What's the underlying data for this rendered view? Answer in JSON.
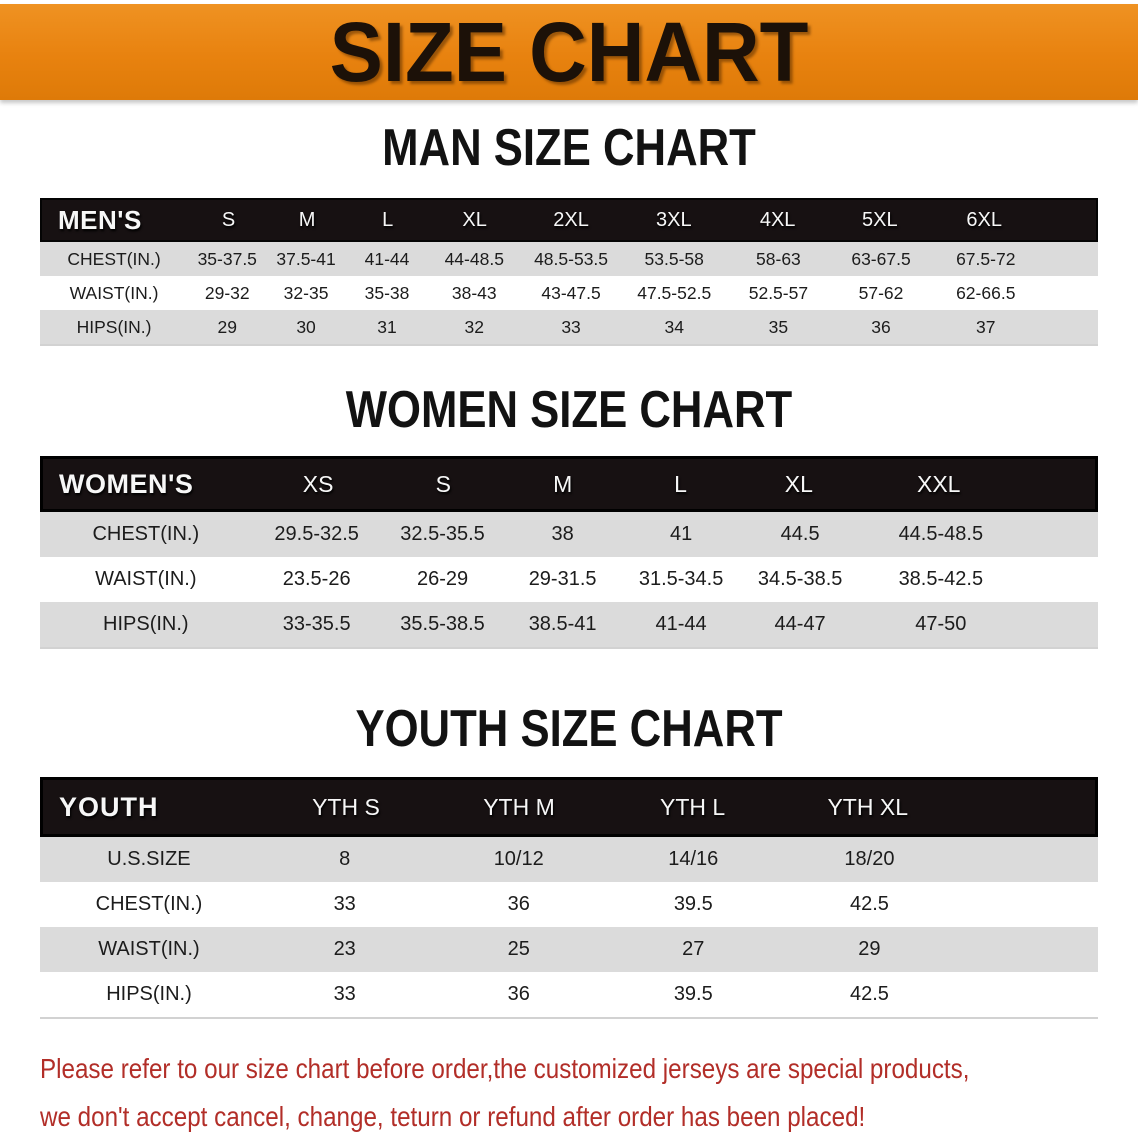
{
  "banner": {
    "title": "SIZE CHART",
    "bg_color": "#e8820f",
    "text_color": "#1c1108"
  },
  "sections": [
    {
      "id": "men",
      "title": "MAN SIZE CHART",
      "table": {
        "header_label": "MEN'S",
        "columns": [
          "S",
          "M",
          "L",
          "XL",
          "2XL",
          "3XL",
          "4XL",
          "5XL",
          "6XL"
        ],
        "rows": [
          {
            "label": "CHEST(IN.)",
            "values": [
              "35-37.5",
              "37.5-41",
              "41-44",
              "44-48.5",
              "48.5-53.5",
              "53.5-58",
              "58-63",
              "63-67.5",
              "67.5-72"
            ]
          },
          {
            "label": "WAIST(IN.)",
            "values": [
              "29-32",
              "32-35",
              "35-38",
              "38-43",
              "43-47.5",
              "47.5-52.5",
              "52.5-57",
              "57-62",
              "62-66.5"
            ]
          },
          {
            "label": "HIPS(IN.)",
            "values": [
              "29",
              "30",
              "31",
              "32",
              "33",
              "34",
              "35",
              "36",
              "37"
            ]
          }
        ]
      }
    },
    {
      "id": "women",
      "title": "WOMEN SIZE CHART",
      "table": {
        "header_label": "WOMEN'S",
        "columns": [
          "XS",
          "S",
          "M",
          "L",
          "XL",
          "XXL"
        ],
        "rows": [
          {
            "label": "CHEST(IN.)",
            "values": [
              "29.5-32.5",
              "32.5-35.5",
              "38",
              "41",
              "44.5",
              "44.5-48.5"
            ]
          },
          {
            "label": "WAIST(IN.)",
            "values": [
              "23.5-26",
              "26-29",
              "29-31.5",
              "31.5-34.5",
              "34.5-38.5",
              "38.5-42.5"
            ]
          },
          {
            "label": "HIPS(IN.)",
            "values": [
              "33-35.5",
              "35.5-38.5",
              "38.5-41",
              "41-44",
              "44-47",
              "47-50"
            ]
          }
        ]
      }
    },
    {
      "id": "youth",
      "title": "YOUTH SIZE CHART",
      "table": {
        "header_label": "YOUTH",
        "columns": [
          "YTH S",
          "YTH M",
          "YTH L",
          "YTH XL"
        ],
        "rows": [
          {
            "label": "U.S.SIZE",
            "values": [
              "8",
              "10/12",
              "14/16",
              "18/20"
            ]
          },
          {
            "label": "CHEST(IN.)",
            "values": [
              "33",
              "36",
              "39.5",
              "42.5"
            ]
          },
          {
            "label": "WAIST(IN.)",
            "values": [
              "23",
              "25",
              "27",
              "29"
            ]
          },
          {
            "label": "HIPS(IN.)",
            "values": [
              "33",
              "36",
              "39.5",
              "42.5"
            ]
          }
        ]
      }
    }
  ],
  "style_colors": {
    "header_bar": "#171112",
    "zebra_row": "#dbdbdb",
    "note_red": "#b22e28"
  },
  "note": {
    "lines": [
      "Please refer to our size chart before order,the customized jerseys are special products,",
      "we don't accept cancel, change, teturn or refund after order has been placed!"
    ]
  }
}
